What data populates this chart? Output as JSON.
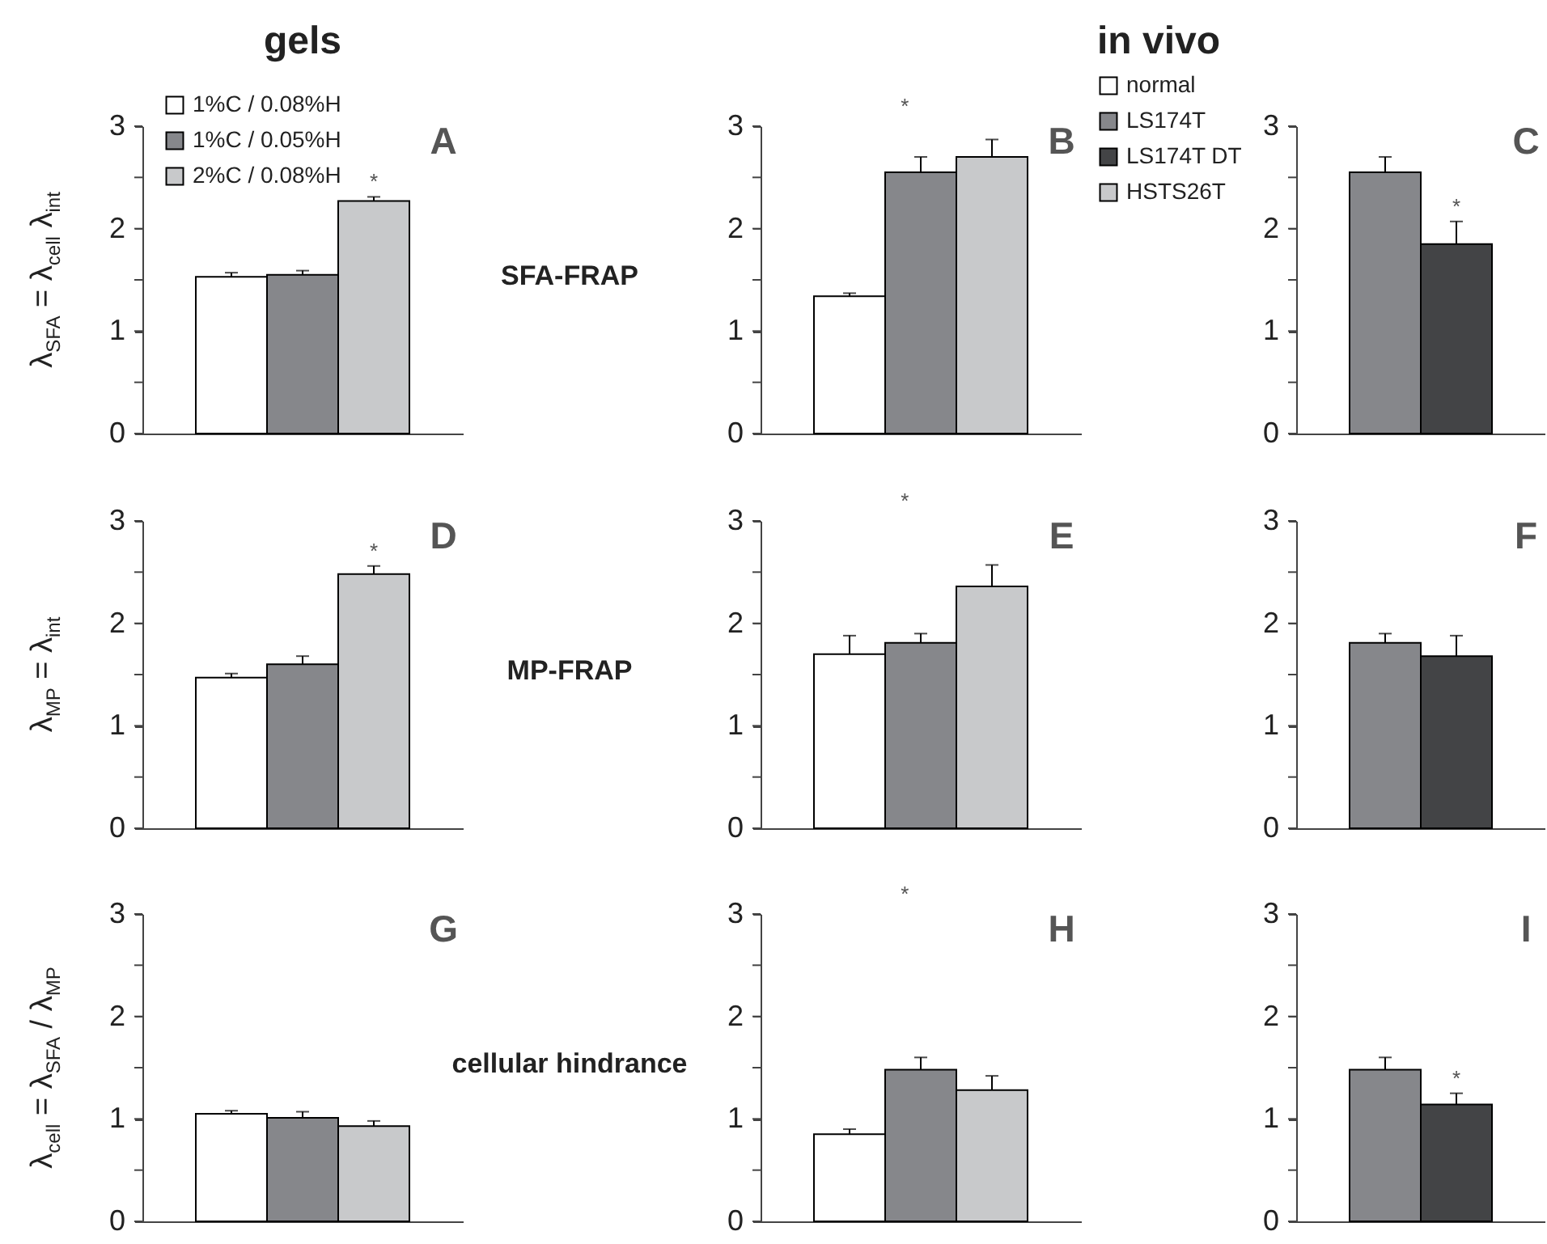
{
  "chart_data": [
    {
      "type": "bar",
      "title": "gels",
      "ylabel": "λ$_{SFA}$ = λ$_{cell}$ λ$_{int}$",
      "categories": [
        null
      ],
      "legend": "top left",
      "tick_labels": "y",
      "ylim": [
        0,
        3
      ],
      "yticks": [
        0,
        {
          "value": 0.5,
          "label": null
        },
        1,
        {
          "value": 1.5,
          "label": null
        },
        2,
        {
          "value": 2.5,
          "label": null
        },
        3
      ],
      "series": [
        {
          "name": "1%C / 0.08%H",
          "color": "#ffffff",
          "values": [
            1.53
          ],
          "errors": [
            0.04
          ]
        },
        {
          "name": "1%C / 0.05%H",
          "color": "#86878b",
          "values": [
            1.55
          ],
          "errors": [
            0.04
          ]
        },
        {
          "name": "2%C / 0.08%H",
          "color": "#c8c9cb",
          "values": [
            2.27
          ],
          "errors": [
            0.04
          ],
          "value_labels": [
            "*"
          ]
        }
      ],
      "annotations": [
        "A",
        "SFA-FRAP"
      ]
    },
    {
      "type": "bar",
      "title": "in vivo",
      "categories": [
        null
      ],
      "legend": "right",
      "tick_labels": "y",
      "ylim": [
        0,
        3
      ],
      "yticks": [
        0,
        {
          "value": 0.5,
          "label": null
        },
        1,
        {
          "value": 1.5,
          "label": null
        },
        2,
        {
          "value": 2.5,
          "label": null
        },
        3
      ],
      "series": [
        {
          "name": "normal",
          "color": "#ffffff",
          "values": [
            1.34
          ],
          "errors": [
            0.03
          ]
        },
        {
          "name": "LS174T",
          "color": "#86878b",
          "values": [
            2.55
          ],
          "errors": [
            0.15
          ]
        },
        {
          "name": "LS174T DT",
          "color": "#434446",
          "values": [
            null
          ]
        },
        {
          "name": "HSTS26T",
          "color": "#c8c9cb",
          "values": [
            2.7
          ],
          "errors": [
            0.17
          ]
        }
      ],
      "annotations": [
        "B",
        "*"
      ]
    },
    {
      "type": "bar",
      "categories": [
        null
      ],
      "tick_labels": "y",
      "ylim": [
        0,
        3
      ],
      "yticks": [
        0,
        {
          "value": 0.5,
          "label": null
        },
        1,
        {
          "value": 1.5,
          "label": null
        },
        2,
        {
          "value": 2.5,
          "label": null
        },
        3
      ],
      "series": [
        {
          "color": "#86878b",
          "values": [
            2.55
          ],
          "errors": [
            0.15
          ]
        },
        {
          "color": "#434446",
          "values": [
            1.85
          ],
          "errors": [
            0.22
          ],
          "value_labels": [
            "*"
          ]
        }
      ],
      "annotations": [
        "C"
      ]
    },
    {
      "type": "bar",
      "ylabel": "λ$_{MP}$ = λ$_{int}$",
      "categories": [
        null
      ],
      "tick_labels": "y",
      "ylim": [
        0,
        3
      ],
      "yticks": [
        0,
        {
          "value": 0.5,
          "label": null
        },
        1,
        {
          "value": 1.5,
          "label": null
        },
        2,
        {
          "value": 2.5,
          "label": null
        },
        3
      ],
      "series": [
        {
          "color": "#ffffff",
          "values": [
            1.47
          ],
          "errors": [
            0.04
          ]
        },
        {
          "color": "#86878b",
          "values": [
            1.6
          ],
          "errors": [
            0.08
          ]
        },
        {
          "color": "#c8c9cb",
          "values": [
            2.48
          ],
          "errors": [
            0.08
          ],
          "value_labels": [
            "*"
          ]
        }
      ],
      "annotations": [
        "D",
        "MP-FRAP"
      ]
    },
    {
      "type": "bar",
      "categories": [
        null
      ],
      "tick_labels": "y",
      "ylim": [
        0,
        3
      ],
      "yticks": [
        0,
        {
          "value": 0.5,
          "label": null
        },
        1,
        {
          "value": 1.5,
          "label": null
        },
        2,
        {
          "value": 2.5,
          "label": null
        },
        3
      ],
      "series": [
        {
          "color": "#ffffff",
          "values": [
            1.7
          ],
          "errors": [
            0.18
          ]
        },
        {
          "color": "#86878b",
          "values": [
            1.81
          ],
          "errors": [
            0.09
          ]
        },
        {
          "color": "#c8c9cb",
          "values": [
            2.36
          ],
          "errors": [
            0.21
          ]
        }
      ],
      "annotations": [
        "E",
        "*"
      ]
    },
    {
      "type": "bar",
      "categories": [
        null
      ],
      "tick_labels": "y",
      "ylim": [
        0,
        3
      ],
      "yticks": [
        0,
        {
          "value": 0.5,
          "label": null
        },
        1,
        {
          "value": 1.5,
          "label": null
        },
        2,
        {
          "value": 2.5,
          "label": null
        },
        3
      ],
      "series": [
        {
          "color": "#86878b",
          "values": [
            1.81
          ],
          "errors": [
            0.09
          ]
        },
        {
          "color": "#434446",
          "values": [
            1.68
          ],
          "errors": [
            0.2
          ]
        }
      ],
      "annotations": [
        "F"
      ]
    },
    {
      "type": "bar",
      "ylabel": "λ$_{cell}$ = λ$_{SFA}$ / λ$_{MP}$",
      "categories": [
        null
      ],
      "tick_labels": "y",
      "ylim": [
        0,
        3
      ],
      "yticks": [
        0,
        {
          "value": 0.5,
          "label": null
        },
        1,
        {
          "value": 1.5,
          "label": null
        },
        2,
        {
          "value": 2.5,
          "label": null
        },
        3
      ],
      "series": [
        {
          "color": "#ffffff",
          "values": [
            1.05
          ],
          "errors": [
            0.03
          ]
        },
        {
          "color": "#86878b",
          "values": [
            1.01
          ],
          "errors": [
            0.06
          ]
        },
        {
          "color": "#c8c9cb",
          "values": [
            0.93
          ],
          "errors": [
            0.05
          ]
        }
      ],
      "annotations": [
        "G",
        "cellular hindrance"
      ]
    },
    {
      "type": "bar",
      "categories": [
        null
      ],
      "tick_labels": "y",
      "ylim": [
        0,
        3
      ],
      "yticks": [
        0,
        {
          "value": 0.5,
          "label": null
        },
        1,
        {
          "value": 1.5,
          "label": null
        },
        2,
        {
          "value": 2.5,
          "label": null
        },
        3
      ],
      "series": [
        {
          "color": "#ffffff",
          "values": [
            0.85
          ],
          "errors": [
            0.05
          ]
        },
        {
          "color": "#86878b",
          "values": [
            1.48
          ],
          "errors": [
            0.12
          ]
        },
        {
          "color": "#c8c9cb",
          "values": [
            1.28
          ],
          "errors": [
            0.14
          ]
        }
      ],
      "annotations": [
        "H",
        "*"
      ]
    },
    {
      "type": "bar",
      "categories": [
        null
      ],
      "tick_labels": "y",
      "ylim": [
        0,
        3
      ],
      "yticks": [
        0,
        {
          "value": 0.5,
          "label": null
        },
        1,
        {
          "value": 1.5,
          "label": null
        },
        2,
        {
          "value": 2.5,
          "label": null
        },
        3
      ],
      "series": [
        {
          "color": "#86878b",
          "values": [
            1.48
          ],
          "errors": [
            0.12
          ]
        },
        {
          "color": "#434446",
          "values": [
            1.14
          ],
          "errors": [
            0.11
          ],
          "value_labels": [
            "*"
          ]
        }
      ],
      "annotations": [
        "I"
      ]
    }
  ]
}
